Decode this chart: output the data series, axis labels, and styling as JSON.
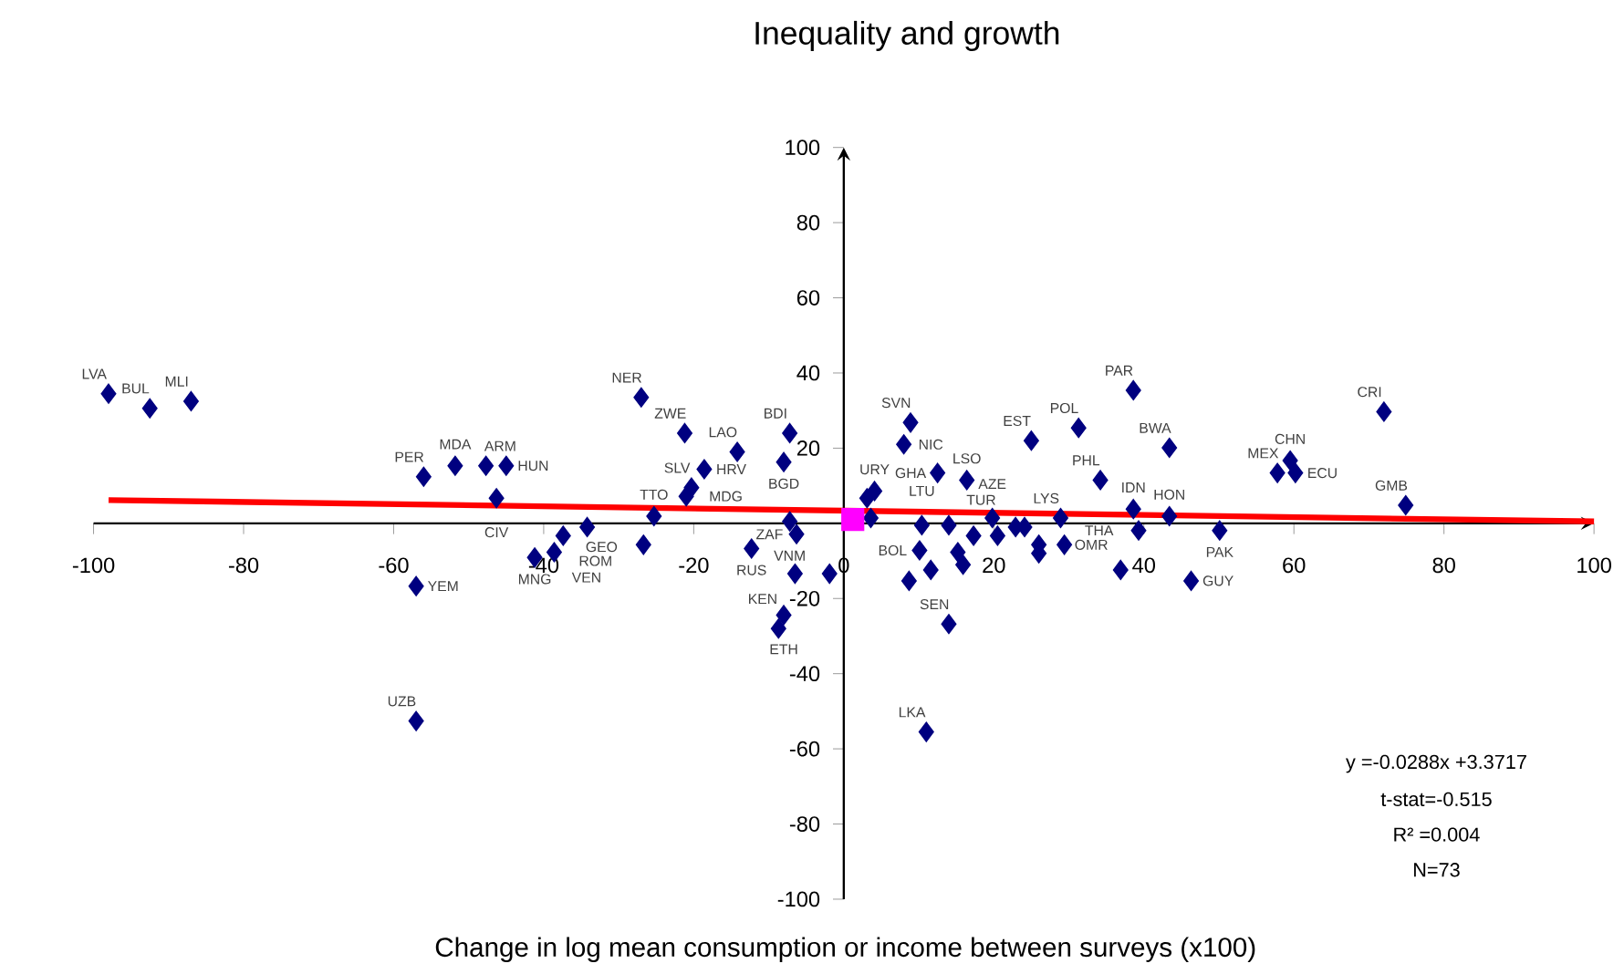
{
  "chart_data": {
    "type": "scatter",
    "title": "Inequality and growth",
    "xlabel": "Change in log mean consumption or income between surveys (x100)",
    "xlim": [
      -100,
      100
    ],
    "ylim": [
      -100,
      100
    ],
    "xticks": [
      -100,
      -80,
      -60,
      -40,
      -20,
      0,
      20,
      40,
      60,
      80,
      100
    ],
    "yticks": [
      -100,
      -80,
      -60,
      -40,
      -20,
      20,
      40,
      60,
      80,
      100
    ],
    "grid": false,
    "series": [
      {
        "color": "#000080",
        "marker": "diamond",
        "x": [
          -98,
          -92.5,
          -87,
          -56,
          -57,
          -57,
          -51.8,
          -47.7,
          -45,
          -46.3,
          -41.2,
          -38.6,
          -37.4,
          -34.2,
          -25.3,
          -26.7,
          -27,
          -21.2,
          -18.6,
          -20.3,
          -21,
          -14.2,
          -7.2,
          -8,
          -7.2,
          -6.3,
          -12.3,
          -6.5,
          -8,
          -8.7,
          -1.9,
          4.1,
          3.1,
          8,
          8.9,
          12.5,
          16.4,
          3.6,
          10.4,
          14,
          10.1,
          11.6,
          8.7,
          15.2,
          15.9,
          14,
          17.3,
          19.8,
          20.5,
          22.9,
          24.1,
          25,
          26,
          26,
          29.4,
          28.9,
          31.3,
          34.2,
          38.6,
          38.6,
          39.3,
          36.9,
          43.4,
          43.4,
          50.1,
          46.3,
          57.8,
          59.5,
          60.2,
          72,
          74.9,
          11
        ],
        "values": [
          34.5,
          30.6,
          32.5,
          12.4,
          -16.7,
          -52.6,
          15.3,
          15.3,
          15.3,
          6.7,
          -9.1,
          -7.7,
          -3.3,
          -1,
          1.9,
          -5.7,
          33.5,
          24,
          14.4,
          9.5,
          7.2,
          19,
          24,
          16.3,
          0.5,
          -2.9,
          -6.7,
          -13.4,
          -24.4,
          -28,
          -13.4,
          8.6,
          6.7,
          21,
          26.8,
          13.4,
          11.5,
          1.4,
          -0.5,
          -0.5,
          -7.2,
          -12.4,
          -15.3,
          -7.7,
          -11,
          -26.8,
          -3.3,
          1.4,
          -3.3,
          -1,
          -1,
          22,
          -5.7,
          -8,
          -5.7,
          1.4,
          25.4,
          11.5,
          35.4,
          3.8,
          -1.9,
          -12.4,
          20.1,
          1.9,
          -1.9,
          -15.3,
          13.4,
          16.7,
          13.4,
          29.7,
          4.8,
          -55.5
        ],
        "value_labels": [
          "LVA",
          "BUL",
          "MLI",
          "PER",
          "YEM",
          "UZB",
          "MDA",
          "ARM",
          "HUN",
          "CIV",
          "MNG",
          "VEN",
          "ROM",
          "GEO",
          "TTO",
          null,
          "NER",
          "ZWE",
          "HRV",
          "SLV",
          "MDG",
          "LAO",
          "BDI",
          "BGD",
          "VNM",
          "ZAF",
          "RUS",
          "KEN",
          "ETH",
          null,
          null,
          "URY",
          null,
          "NIC",
          "SVN",
          "GHA",
          "LSO",
          null,
          "LTU",
          "TUR",
          "BOL",
          null,
          null,
          null,
          null,
          "SEN",
          null,
          "AZE",
          null,
          null,
          null,
          "EST",
          null,
          null,
          "OMR",
          "LYS",
          "POL",
          "PHL",
          "PAR",
          "IDN",
          "THA",
          null,
          "BWA",
          "HON",
          "PAK",
          "GUY",
          "MEX",
          "CHN",
          "ECU",
          "CRI",
          "GMB",
          "LKA"
        ]
      },
      {
        "color": "#ff00ff",
        "marker": "square",
        "x": [
          1.2
        ],
        "values": [
          1
        ]
      },
      {
        "type": "line",
        "color": "#ff0000",
        "line_style": "solid",
        "x": [
          -98,
          100
        ],
        "values": [
          6.2,
          0.5
        ]
      }
    ],
    "annotations": [
      "y =-0.0288x +3.3717",
      "t-stat=-0.515",
      "R² =0.004",
      "N=73"
    ]
  }
}
